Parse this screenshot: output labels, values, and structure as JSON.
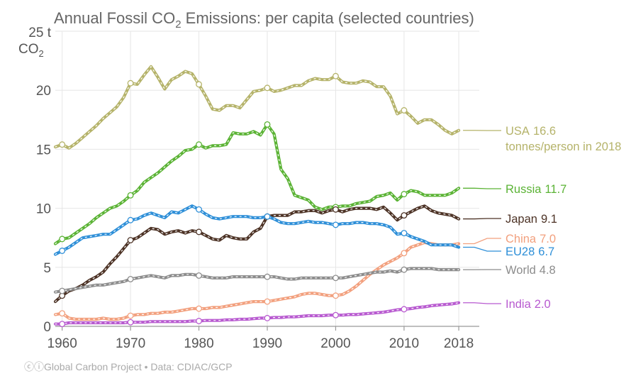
{
  "chart_data": {
    "type": "line",
    "title": "Annual Fossil CO₂ Emissions: per capita (selected countries)",
    "title_main": "Annual Fossil CO",
    "title_sub": "2",
    "title_rest": " Emissions: per capita (selected countries)",
    "ylabel_top": "25 t",
    "ylabel_unit": "CO",
    "ylabel_sub": "2",
    "xlim": [
      1959,
      2021
    ],
    "ylim": [
      0,
      25
    ],
    "y_ticks": [
      0,
      5,
      10,
      15,
      20
    ],
    "x_ticks": [
      "1960",
      "1970",
      "1980",
      "1990",
      "2000",
      "2010",
      "2018"
    ],
    "grid": true,
    "credit": "Global Carbon Project • Data: CDIAC/GCP",
    "credit_mark": "ⓒⓘ",
    "series": [
      {
        "name": "USA",
        "value_label": "16.6",
        "extra_label": "tonnes/person in 2018",
        "color": "#b5b36a",
        "x": [
          1959,
          1960,
          1961,
          1962,
          1963,
          1964,
          1965,
          1966,
          1967,
          1968,
          1969,
          1970,
          1971,
          1972,
          1973,
          1974,
          1975,
          1976,
          1977,
          1978,
          1979,
          1980,
          1981,
          1982,
          1983,
          1984,
          1985,
          1986,
          1987,
          1988,
          1989,
          1990,
          1991,
          1992,
          1993,
          1994,
          1995,
          1996,
          1997,
          1998,
          1999,
          2000,
          2001,
          2002,
          2003,
          2004,
          2005,
          2006,
          2007,
          2008,
          2009,
          2010,
          2011,
          2012,
          2013,
          2014,
          2015,
          2016,
          2017,
          2018
        ],
        "y": [
          15.2,
          15.4,
          15.1,
          15.5,
          16.0,
          16.5,
          17.0,
          17.6,
          18.1,
          18.6,
          19.4,
          20.6,
          20.5,
          21.3,
          22.0,
          21.1,
          20.1,
          20.9,
          21.2,
          21.6,
          21.4,
          20.5,
          19.5,
          18.4,
          18.3,
          18.7,
          18.7,
          18.5,
          19.2,
          19.9,
          20.0,
          20.2,
          19.9,
          20.0,
          20.2,
          20.4,
          20.4,
          20.8,
          21.0,
          20.9,
          20.9,
          21.2,
          20.7,
          20.6,
          20.6,
          20.8,
          20.7,
          20.3,
          20.3,
          19.5,
          18.0,
          18.3,
          17.8,
          17.2,
          17.5,
          17.5,
          17.1,
          16.6,
          16.3,
          16.6
        ]
      },
      {
        "name": "Russia",
        "value_label": "11.7",
        "color": "#5bb335",
        "x": [
          1959,
          1960,
          1961,
          1962,
          1963,
          1964,
          1965,
          1966,
          1967,
          1968,
          1969,
          1970,
          1971,
          1972,
          1973,
          1974,
          1975,
          1976,
          1977,
          1978,
          1979,
          1980,
          1981,
          1982,
          1983,
          1984,
          1985,
          1986,
          1987,
          1988,
          1989,
          1990,
          1991,
          1992,
          1993,
          1994,
          1995,
          1996,
          1997,
          1998,
          1999,
          2000,
          2001,
          2002,
          2003,
          2004,
          2005,
          2006,
          2007,
          2008,
          2009,
          2010,
          2011,
          2012,
          2013,
          2014,
          2015,
          2016,
          2017,
          2018
        ],
        "y": [
          7.0,
          7.4,
          7.5,
          7.9,
          8.3,
          8.7,
          9.2,
          9.6,
          10.0,
          10.2,
          10.6,
          11.1,
          11.5,
          12.2,
          12.6,
          13.0,
          13.5,
          14.0,
          14.4,
          14.9,
          15.0,
          15.4,
          15.1,
          15.3,
          15.3,
          15.4,
          16.4,
          16.3,
          16.3,
          16.5,
          16.2,
          17.1,
          16.3,
          13.3,
          12.5,
          11.1,
          10.9,
          10.7,
          10.1,
          9.9,
          10.1,
          10.1,
          10.2,
          10.2,
          10.4,
          10.5,
          10.6,
          11.0,
          11.1,
          11.3,
          10.7,
          11.2,
          11.5,
          11.4,
          11.1,
          11.1,
          11.1,
          11.1,
          11.3,
          11.7
        ]
      },
      {
        "name": "Japan",
        "value_label": "9.1",
        "color": "#4d3326",
        "x": [
          1959,
          1960,
          1961,
          1962,
          1963,
          1964,
          1965,
          1966,
          1967,
          1968,
          1969,
          1970,
          1971,
          1972,
          1973,
          1974,
          1975,
          1976,
          1977,
          1978,
          1979,
          1980,
          1981,
          1982,
          1983,
          1984,
          1985,
          1986,
          1987,
          1988,
          1989,
          1990,
          1991,
          1992,
          1993,
          1994,
          1995,
          1996,
          1997,
          1998,
          1999,
          2000,
          2001,
          2002,
          2003,
          2004,
          2005,
          2006,
          2007,
          2008,
          2009,
          2010,
          2011,
          2012,
          2013,
          2014,
          2015,
          2016,
          2017,
          2018
        ],
        "y": [
          2.1,
          2.6,
          3.0,
          3.2,
          3.5,
          3.9,
          4.2,
          4.6,
          5.3,
          5.9,
          6.6,
          7.3,
          7.5,
          7.9,
          8.3,
          8.2,
          7.8,
          8.0,
          8.1,
          7.9,
          8.1,
          8.0,
          7.7,
          7.4,
          7.3,
          7.7,
          7.5,
          7.4,
          7.4,
          8.0,
          8.3,
          9.3,
          9.4,
          9.4,
          9.4,
          9.7,
          9.7,
          9.8,
          9.8,
          9.6,
          9.8,
          9.9,
          9.7,
          9.9,
          10.0,
          10.0,
          10.0,
          9.9,
          10.1,
          9.6,
          9.0,
          9.4,
          9.7,
          10.0,
          10.2,
          9.8,
          9.6,
          9.5,
          9.4,
          9.1
        ]
      },
      {
        "name": "China",
        "value_label": "7.0",
        "color": "#f2a07e",
        "x": [
          1959,
          1960,
          1961,
          1962,
          1963,
          1964,
          1965,
          1966,
          1967,
          1968,
          1969,
          1970,
          1971,
          1972,
          1973,
          1974,
          1975,
          1976,
          1977,
          1978,
          1979,
          1980,
          1981,
          1982,
          1983,
          1984,
          1985,
          1986,
          1987,
          1988,
          1989,
          1990,
          1991,
          1992,
          1993,
          1994,
          1995,
          1996,
          1997,
          1998,
          1999,
          2000,
          2001,
          2002,
          2003,
          2004,
          2005,
          2006,
          2007,
          2008,
          2009,
          2010,
          2011,
          2012,
          2013,
          2014,
          2015,
          2016,
          2017,
          2018
        ],
        "y": [
          1.0,
          1.1,
          0.7,
          0.6,
          0.6,
          0.6,
          0.6,
          0.7,
          0.6,
          0.6,
          0.7,
          0.9,
          1.0,
          1.0,
          1.1,
          1.1,
          1.2,
          1.2,
          1.3,
          1.4,
          1.5,
          1.5,
          1.5,
          1.6,
          1.6,
          1.7,
          1.8,
          1.9,
          2.0,
          2.1,
          2.1,
          2.1,
          2.2,
          2.3,
          2.4,
          2.5,
          2.7,
          2.8,
          2.8,
          2.7,
          2.6,
          2.6,
          2.7,
          3.0,
          3.4,
          3.9,
          4.4,
          4.8,
          5.2,
          5.5,
          5.8,
          6.2,
          6.7,
          6.9,
          7.1,
          7.0,
          6.9,
          6.9,
          6.9,
          7.0
        ]
      },
      {
        "name": "EU28",
        "value_label": "6.7",
        "color": "#2e8fd8",
        "x": [
          1959,
          1960,
          1961,
          1962,
          1963,
          1964,
          1965,
          1966,
          1967,
          1968,
          1969,
          1970,
          1971,
          1972,
          1973,
          1974,
          1975,
          1976,
          1977,
          1978,
          1979,
          1980,
          1981,
          1982,
          1983,
          1984,
          1985,
          1986,
          1987,
          1988,
          1989,
          1990,
          1991,
          1992,
          1993,
          1994,
          1995,
          1996,
          1997,
          1998,
          1999,
          2000,
          2001,
          2002,
          2003,
          2004,
          2005,
          2006,
          2007,
          2008,
          2009,
          2010,
          2011,
          2012,
          2013,
          2014,
          2015,
          2016,
          2017,
          2018
        ],
        "y": [
          6.1,
          6.4,
          6.7,
          7.1,
          7.5,
          7.6,
          7.7,
          7.8,
          7.8,
          8.2,
          8.6,
          9.0,
          9.1,
          9.4,
          9.6,
          9.4,
          9.2,
          9.7,
          9.6,
          9.9,
          10.2,
          9.9,
          9.5,
          9.2,
          9.1,
          9.2,
          9.3,
          9.3,
          9.3,
          9.2,
          9.2,
          9.3,
          9.1,
          8.8,
          8.7,
          8.7,
          8.8,
          8.9,
          8.8,
          8.8,
          8.7,
          8.6,
          8.7,
          8.7,
          8.8,
          8.8,
          8.7,
          8.7,
          8.6,
          8.4,
          7.8,
          7.9,
          7.6,
          7.4,
          7.2,
          6.9,
          6.9,
          6.9,
          6.9,
          6.7
        ]
      },
      {
        "name": "World",
        "value_label": "4.8",
        "color": "#8c8c8c",
        "x": [
          1959,
          1960,
          1961,
          1962,
          1963,
          1964,
          1965,
          1966,
          1967,
          1968,
          1969,
          1970,
          1971,
          1972,
          1973,
          1974,
          1975,
          1976,
          1977,
          1978,
          1979,
          1980,
          1981,
          1982,
          1983,
          1984,
          1985,
          1986,
          1987,
          1988,
          1989,
          1990,
          1991,
          1992,
          1993,
          1994,
          1995,
          1996,
          1997,
          1998,
          1999,
          2000,
          2001,
          2002,
          2003,
          2004,
          2005,
          2006,
          2007,
          2008,
          2009,
          2010,
          2011,
          2012,
          2013,
          2014,
          2015,
          2016,
          2017,
          2018
        ],
        "y": [
          2.9,
          3.0,
          3.1,
          3.2,
          3.3,
          3.4,
          3.5,
          3.5,
          3.6,
          3.7,
          3.8,
          4.0,
          4.1,
          4.2,
          4.3,
          4.2,
          4.1,
          4.3,
          4.3,
          4.4,
          4.4,
          4.3,
          4.2,
          4.1,
          4.1,
          4.1,
          4.2,
          4.2,
          4.2,
          4.2,
          4.2,
          4.2,
          4.2,
          4.1,
          4.0,
          4.0,
          4.1,
          4.1,
          4.1,
          4.1,
          4.1,
          4.1,
          4.1,
          4.2,
          4.3,
          4.4,
          4.5,
          4.6,
          4.6,
          4.7,
          4.6,
          4.8,
          4.9,
          4.9,
          4.9,
          4.9,
          4.8,
          4.8,
          4.8,
          4.8
        ]
      },
      {
        "name": "India",
        "value_label": "2.0",
        "color": "#b85ad0",
        "x": [
          1959,
          1960,
          1961,
          1962,
          1963,
          1964,
          1965,
          1966,
          1967,
          1968,
          1969,
          1970,
          1971,
          1972,
          1973,
          1974,
          1975,
          1976,
          1977,
          1978,
          1979,
          1980,
          1981,
          1982,
          1983,
          1984,
          1985,
          1986,
          1987,
          1988,
          1989,
          1990,
          1991,
          1992,
          1993,
          1994,
          1995,
          1996,
          1997,
          1998,
          1999,
          2000,
          2001,
          2002,
          2003,
          2004,
          2005,
          2006,
          2007,
          2008,
          2009,
          2010,
          2011,
          2012,
          2013,
          2014,
          2015,
          2016,
          2017,
          2018
        ],
        "y": [
          0.2,
          0.2,
          0.3,
          0.3,
          0.3,
          0.3,
          0.3,
          0.3,
          0.3,
          0.3,
          0.3,
          0.35,
          0.35,
          0.35,
          0.4,
          0.4,
          0.4,
          0.4,
          0.4,
          0.4,
          0.45,
          0.45,
          0.5,
          0.5,
          0.5,
          0.55,
          0.55,
          0.6,
          0.6,
          0.65,
          0.7,
          0.7,
          0.75,
          0.75,
          0.8,
          0.8,
          0.85,
          0.9,
          0.9,
          0.9,
          0.95,
          0.95,
          0.95,
          1.0,
          1.0,
          1.05,
          1.1,
          1.15,
          1.2,
          1.3,
          1.4,
          1.45,
          1.5,
          1.6,
          1.65,
          1.75,
          1.8,
          1.85,
          1.9,
          2.0
        ]
      }
    ]
  }
}
